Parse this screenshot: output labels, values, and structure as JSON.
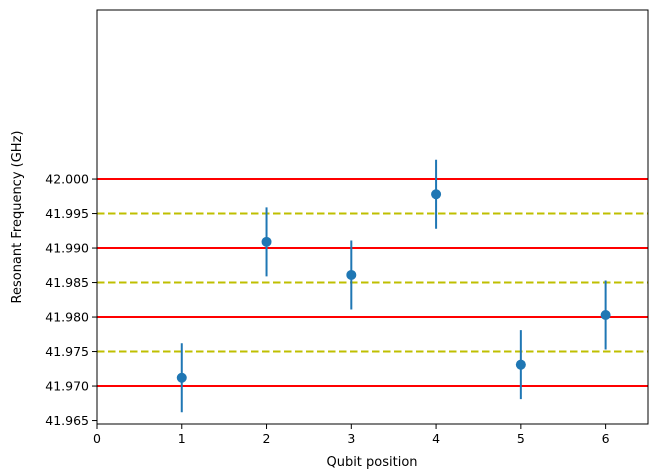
{
  "chart_data": {
    "type": "scatter",
    "title": "",
    "xlabel": "Qubit position",
    "ylabel": "Resonant Frequency (GHz)",
    "xlim": [
      0,
      6.5
    ],
    "ylim": [
      41.9645,
      42.0245
    ],
    "x_ticks": [
      0,
      1,
      2,
      3,
      4,
      5,
      6
    ],
    "x_tick_labels": [
      "0",
      "1",
      "2",
      "3",
      "4",
      "5",
      "6"
    ],
    "y_ticks": [
      41.965,
      41.97,
      41.975,
      41.98,
      41.985,
      41.99,
      41.995,
      42.0
    ],
    "y_tick_labels": [
      "41.965",
      "41.970",
      "41.975",
      "41.980",
      "41.985",
      "41.990",
      "41.995",
      "42.000"
    ],
    "grid": false,
    "series": [
      {
        "marker": "circle",
        "color": "#1f77b4",
        "x": [
          1,
          2,
          3,
          4,
          5,
          6
        ],
        "y": [
          41.9712,
          41.9909,
          41.9861,
          41.9978,
          41.9731,
          41.9803
        ],
        "yerr": [
          0.005,
          0.005,
          0.005,
          0.005,
          0.005,
          0.005
        ]
      }
    ],
    "reference_lines": {
      "solid": {
        "color": "#ff0000",
        "y": [
          41.97,
          41.98,
          41.99,
          42.0
        ]
      },
      "dashed": {
        "color": "#bfbf00",
        "y": [
          41.975,
          41.985,
          41.995
        ]
      }
    }
  }
}
